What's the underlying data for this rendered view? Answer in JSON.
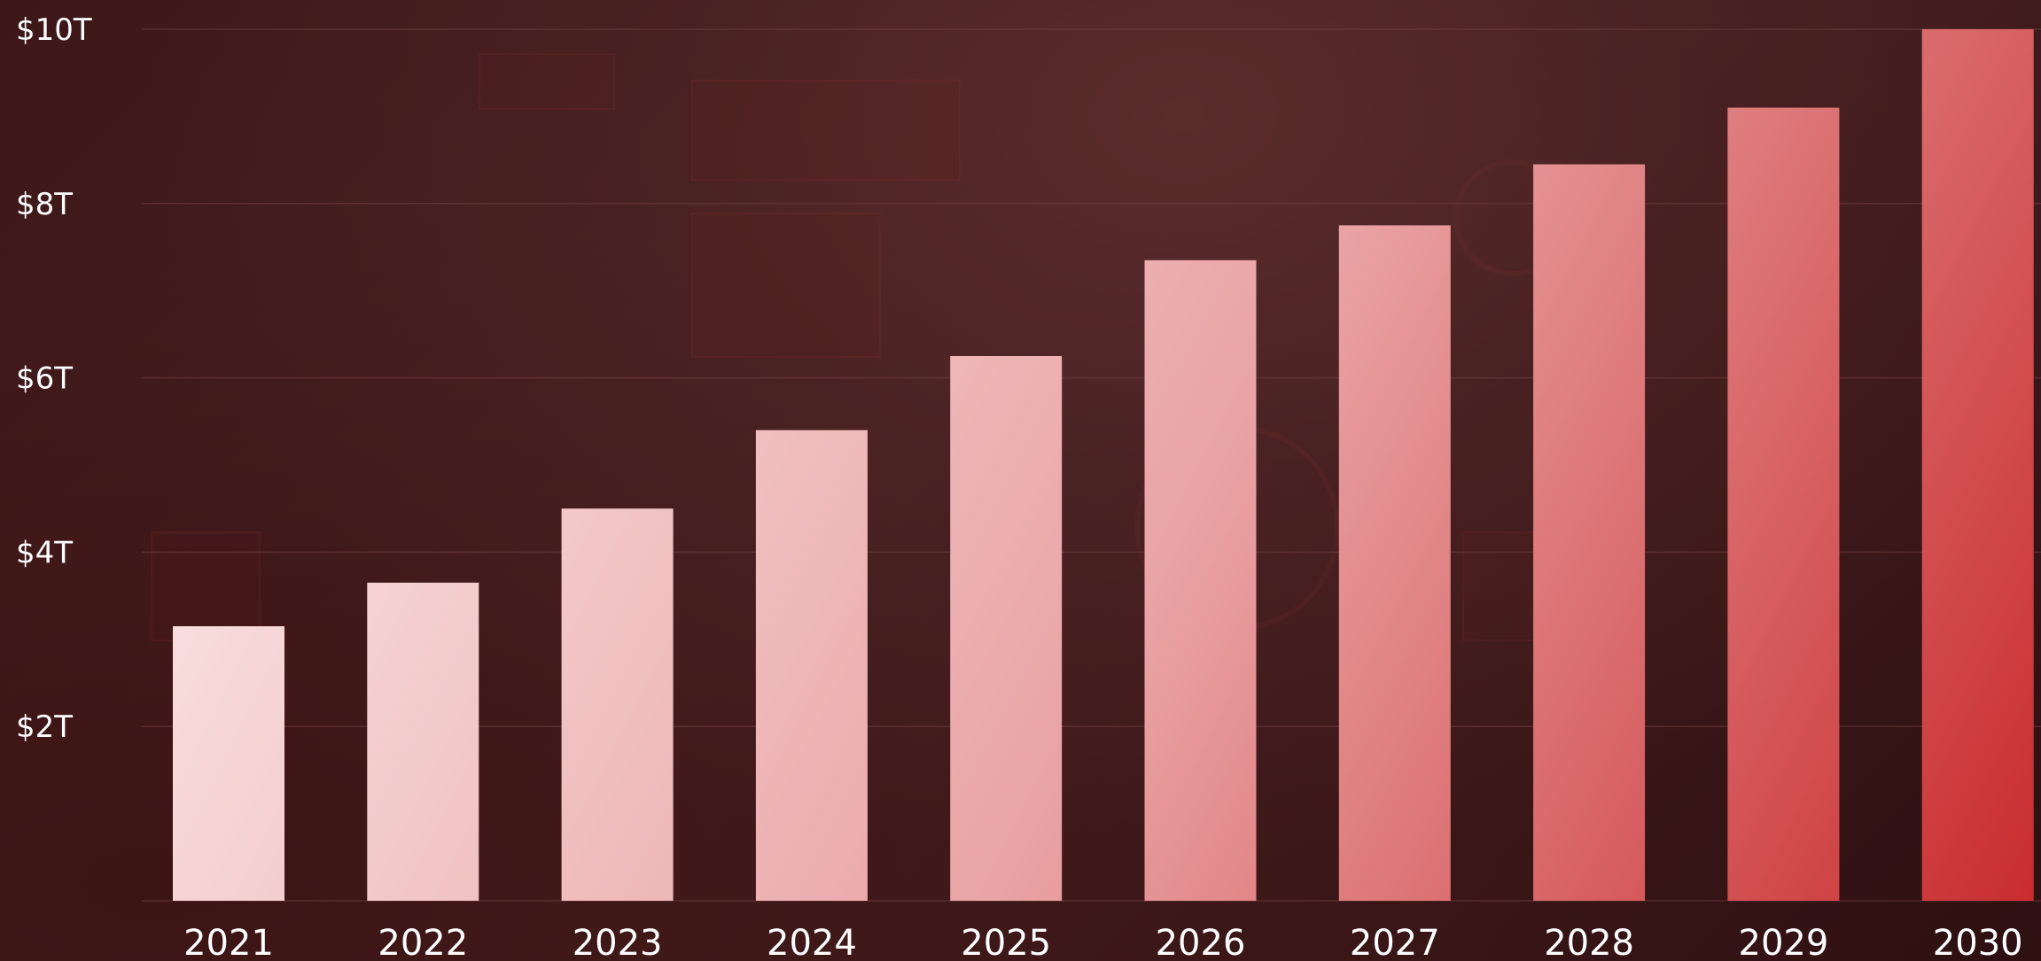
{
  "chart_data": {
    "type": "bar",
    "categories": [
      "2021",
      "2022",
      "2023",
      "2024",
      "2025",
      "2026",
      "2027",
      "2028",
      "2029",
      "2030"
    ],
    "values": [
      3.15,
      3.65,
      4.5,
      5.4,
      6.25,
      7.35,
      7.75,
      8.45,
      9.1,
      10.0
    ],
    "ytick_values": [
      2,
      4,
      6,
      8,
      10
    ],
    "ytick_labels": [
      "$2T",
      "$4T",
      "$6T",
      "$8T",
      "$10T"
    ],
    "ylim": [
      0,
      10
    ],
    "title": "",
    "xlabel": "",
    "ylabel": "",
    "grid": true,
    "legend": "none",
    "colors": {
      "bar_start": "#fdf0f0",
      "bar_end": "#c8282a",
      "text": "#ffffff",
      "grid": "#7a4848"
    }
  }
}
